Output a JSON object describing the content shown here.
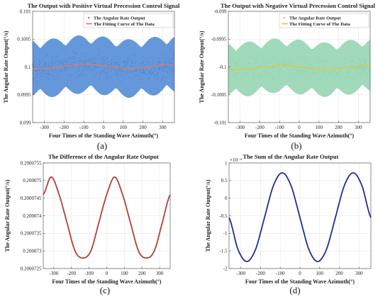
{
  "chart_data": [
    {
      "type": "scatter",
      "panel_label": "(a)",
      "title": "The Output with Positive Virtual Precession Control Signal",
      "xlabel": "Four Times of the Standing Wave Azimuth(°)",
      "ylabel": "The Angular Rate Output(°/s)",
      "xlim": [
        -360,
        360
      ],
      "ylim": [
        0.099,
        0.101
      ],
      "xticks": [
        -300,
        -200,
        -100,
        0,
        100,
        200,
        300
      ],
      "yticks": [
        0.099,
        0.0995,
        0.1,
        0.1005,
        0.101
      ],
      "ytick_labels": [
        "0.099",
        "0.0995",
        "0.1",
        "0.1005",
        "0.101"
      ],
      "legend_position": "top-right",
      "grid": true,
      "series": [
        {
          "name": "The Angular Rate Output",
          "kind": "scatter",
          "color": "#4a86d4",
          "center_value": 0.1,
          "spread_range": [
            0.0993,
            0.1008
          ]
        },
        {
          "name": "The Fitting Curve of The Data",
          "kind": "line",
          "color": "#e07a5f",
          "x": [
            -360,
            -315,
            -270,
            -225,
            -180,
            -135,
            -90,
            -45,
            0,
            45,
            90,
            135,
            180,
            225,
            270,
            315,
            360
          ],
          "y": [
            0.09998,
            0.09997,
            0.09998,
            0.1,
            0.10002,
            0.10004,
            0.10005,
            0.10004,
            0.10002,
            0.1,
            0.09998,
            0.09997,
            0.09998,
            0.1,
            0.10002,
            0.10004,
            0.10005
          ]
        }
      ]
    },
    {
      "type": "scatter",
      "panel_label": "(b)",
      "title": "The Output with Negative Virtual Precession Control Signal",
      "xlabel": "Four Times of the Standing Wave Azimuth(°)",
      "ylabel": "The Angular Rate Output(°/s)",
      "xlim": [
        -360,
        360
      ],
      "ylim": [
        -0.101,
        -0.099
      ],
      "xticks": [
        -300,
        -200,
        -100,
        0,
        100,
        200,
        300
      ],
      "yticks": [
        -0.101,
        -0.1005,
        -0.1,
        -0.0995,
        -0.099
      ],
      "ytick_labels": [
        "-0.101",
        "-0.1005",
        "-0.1",
        "-0.0995",
        "-0.099"
      ],
      "legend_position": "top-right",
      "grid": true,
      "series": [
        {
          "name": "The Angular Rate Output",
          "kind": "scatter",
          "color": "#8fd3ae",
          "center_value": -0.1,
          "spread_range": [
            -0.1007,
            -0.0993
          ]
        },
        {
          "name": "The Fitting Curve of The Data",
          "kind": "line",
          "color": "#e7c340",
          "x": [
            -360,
            -315,
            -270,
            -225,
            -180,
            -135,
            -90,
            -45,
            0,
            45,
            90,
            135,
            180,
            225,
            270,
            315,
            360
          ],
          "y": [
            -0.10004,
            -0.10005,
            -0.10004,
            -0.10002,
            -0.1,
            -0.09998,
            -0.09997,
            -0.09998,
            -0.1,
            -0.10002,
            -0.10004,
            -0.10005,
            -0.10004,
            -0.10002,
            -0.1,
            -0.09998,
            -0.09997
          ]
        }
      ]
    },
    {
      "type": "line",
      "panel_label": "(c)",
      "title": "The Difference of the Angular Rate Output",
      "xlabel": "Four Times of the Standing Wave Azimuth(°)",
      "ylabel": "The Angular Rate Output(°/s)",
      "xlim": [
        -360,
        360
      ],
      "ylim": [
        0.2000725,
        0.2000755
      ],
      "xticks": [
        -300,
        -200,
        -100,
        0,
        100,
        200,
        300
      ],
      "yticks": [
        0.2000725,
        0.200073,
        0.2000735,
        0.200074,
        0.2000745,
        0.200075,
        0.2000755
      ],
      "ytick_labels": [
        "0.2000725",
        "0.200073",
        "0.2000735",
        "0.200074",
        "0.2000745",
        "0.200075",
        "0.2000755"
      ],
      "grid": true,
      "series": [
        {
          "kind": "line",
          "color": "#b0403a",
          "x": [
            -360,
            -315,
            -270,
            -225,
            -180,
            -135,
            -90,
            -45,
            0,
            45,
            90,
            135,
            180,
            225,
            270,
            315,
            360
          ],
          "y": [
            0.2000746,
            0.2000751,
            0.2000746,
            0.2000738,
            0.200073,
            0.2000728,
            0.200073,
            0.2000738,
            0.2000746,
            0.2000751,
            0.2000746,
            0.2000738,
            0.200073,
            0.2000728,
            0.200073,
            0.2000738,
            0.2000746
          ]
        }
      ]
    },
    {
      "type": "line",
      "panel_label": "(d)",
      "title": "The Sum of the Angular Rate Output",
      "xlabel": "Four Times of the Standing Wave Azimuth(°)",
      "ylabel": "The Angular Rate Output(°/s)",
      "xlim": [
        -360,
        360
      ],
      "ylim": [
        -2,
        1
      ],
      "y_multiplier": "×10⁻⁴",
      "xticks": [
        -300,
        -200,
        -100,
        0,
        100,
        200,
        300
      ],
      "yticks": [
        -2,
        -1.5,
        -1,
        -0.5,
        0,
        0.5,
        1
      ],
      "ytick_labels": [
        "-2",
        "-1.5",
        "-1",
        "-0.5",
        "0",
        "0.5",
        "1"
      ],
      "grid": true,
      "series": [
        {
          "kind": "line",
          "color": "#1f2f8c",
          "x": [
            -360,
            -315,
            -270,
            -225,
            -180,
            -135,
            -90,
            -45,
            0,
            45,
            90,
            135,
            180,
            225,
            270,
            315,
            360
          ],
          "y": [
            -0.55,
            -1.45,
            -1.8,
            -1.45,
            -0.55,
            0.35,
            0.72,
            0.35,
            -0.55,
            -1.45,
            -1.8,
            -1.45,
            -0.55,
            0.35,
            0.72,
            0.35,
            -0.55
          ]
        }
      ]
    }
  ]
}
